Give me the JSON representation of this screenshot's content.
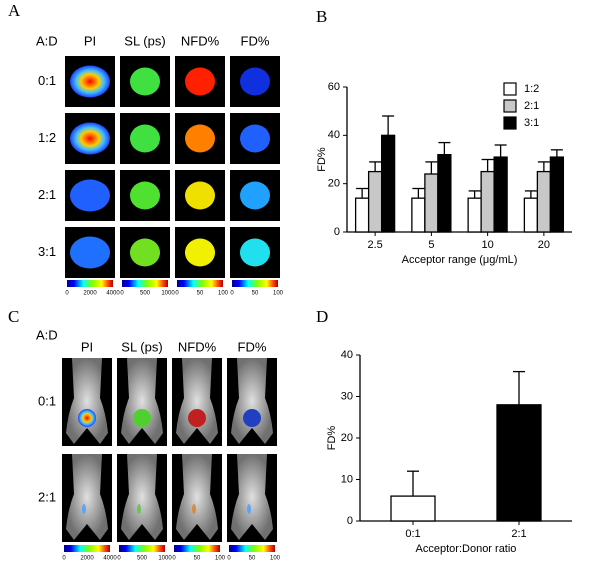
{
  "panel_a": {
    "letter": "A",
    "corner": "A:D",
    "columns": [
      "PI",
      "SL (ps)",
      "NFD%",
      "FD%"
    ],
    "rows": [
      "0:1",
      "1:2",
      "2:1",
      "3:1"
    ],
    "colorbars": [
      [
        0,
        2000,
        4000
      ],
      [
        0,
        500,
        1000
      ],
      [
        0,
        50,
        100
      ],
      [
        0,
        50,
        100
      ]
    ]
  },
  "panel_c": {
    "letter": "C",
    "corner": "A:D",
    "columns": [
      "PI",
      "SL (ps)",
      "NFD%",
      "FD%"
    ],
    "rows": [
      "0:1",
      "2:1"
    ],
    "colorbars": [
      [
        0,
        2000,
        4000
      ],
      [
        0,
        500,
        1000
      ],
      [
        0,
        50,
        100
      ],
      [
        0,
        50,
        100
      ]
    ]
  },
  "chart_data": [
    {
      "type": "grouped_bar",
      "label": "B",
      "xlabel": "Acceptor range (μg/mL)",
      "ylabel": "FD%",
      "categories": [
        "2.5",
        "5",
        "10",
        "20"
      ],
      "series": [
        {
          "name": "1:2",
          "color": "#ffffff",
          "values": [
            14,
            14,
            14,
            14
          ],
          "errors": [
            4,
            4,
            3,
            3
          ]
        },
        {
          "name": "2:1",
          "color": "#c8c8c8",
          "values": [
            25,
            24,
            25,
            25
          ],
          "errors": [
            4,
            5,
            5,
            4
          ]
        },
        {
          "name": "3:1",
          "color": "#000000",
          "values": [
            40,
            32,
            31,
            31
          ],
          "errors": [
            8,
            5,
            5,
            3
          ]
        }
      ],
      "ylim": [
        0,
        60
      ],
      "yticks": [
        0,
        20,
        40,
        60
      ],
      "legend": "top-right"
    },
    {
      "type": "bar",
      "label": "D",
      "xlabel": "Acceptor:Donor ratio",
      "ylabel": "FD%",
      "categories": [
        "0:1",
        "2:1"
      ],
      "values": [
        6,
        28
      ],
      "errors": [
        6,
        8
      ],
      "colors": [
        "#ffffff",
        "#000000"
      ],
      "ylim": [
        0,
        40
      ],
      "yticks": [
        0,
        10,
        20,
        30,
        40
      ]
    }
  ]
}
